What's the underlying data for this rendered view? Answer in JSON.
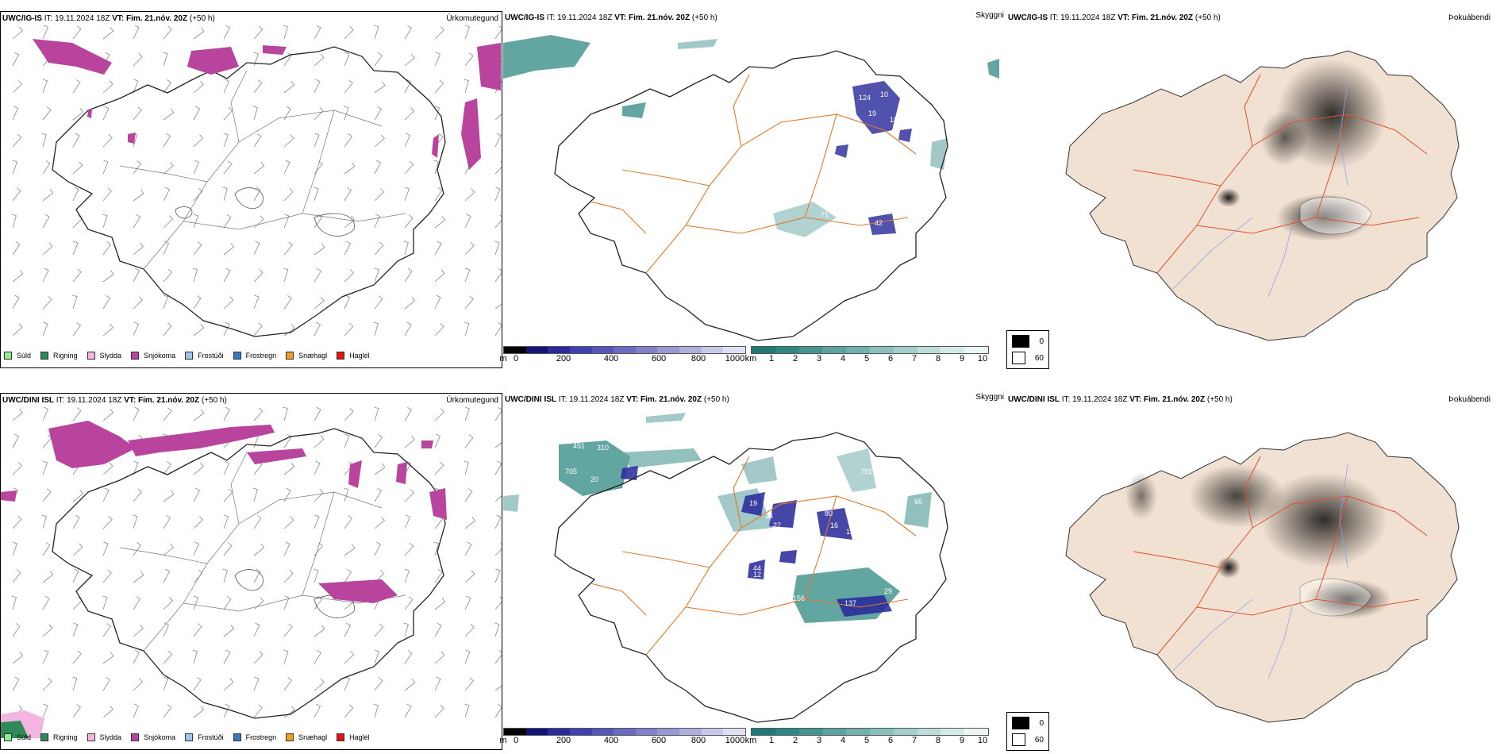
{
  "rows": [
    {
      "model": "UWC/IG-IS",
      "precip": {
        "model": "UWC/IG-IS",
        "it_label": "IT:",
        "it_value": "19.11.2024 18Z",
        "vt_label": "VT:",
        "vt_value": "Fim. 21.nóv. 20Z",
        "lead": "(+50 h)",
        "type": "Úrkomutegund"
      },
      "cloud": {
        "model": "UWC/IG-IS",
        "it_label": "IT:",
        "it_value": "19.11.2024 18Z",
        "vt_label": "VT:",
        "vt_value": "Fim. 21.nóv. 20Z",
        "lead": "(+50 h)",
        "type": "Skyggni",
        "labels": [
          "124",
          "10",
          "19",
          "18",
          "71",
          "17",
          "42"
        ]
      },
      "fog": {
        "model": "UWC/IG-IS",
        "it_label": "IT:",
        "it_value": "19.11.2024 18Z",
        "vt_label": "VT:",
        "vt_value": "Fim. 21.nóv. 20Z",
        "lead": "(+50 h)",
        "type": "Þokuábendi"
      }
    },
    {
      "model": "UWC/DINI ISL",
      "precip": {
        "model": "UWC/DINI ISL",
        "it_label": "IT:",
        "it_value": "19.11.2024 18Z",
        "vt_label": "VT:",
        "vt_value": "Fim. 21.nóv. 20Z",
        "lead": "(+50 h)",
        "type": "Úrkomutegund"
      },
      "cloud": {
        "model": "UWC/DINI ISL",
        "it_label": "IT:",
        "it_value": "19.11.2024 18Z",
        "vt_label": "VT:",
        "vt_value": "Fim. 21.nóv. 20Z",
        "lead": "(+50 h)",
        "type": "Skyggni",
        "labels": [
          "451",
          "310",
          "705",
          "20",
          "791",
          "66",
          "19",
          "24",
          "27",
          "80",
          "16",
          "12",
          "20",
          "15",
          "44",
          "156",
          "137",
          "29",
          "12"
        ]
      },
      "fog": {
        "model": "UWC/DINI ISL",
        "it_label": "IT:",
        "it_value": "19.11.2024 18Z",
        "vt_label": "VT:",
        "vt_value": "Fim. 21.nóv. 20Z",
        "lead": "(+50 h)",
        "type": "Þokuábendi"
      }
    }
  ],
  "precip_legend": [
    {
      "label": "Súld",
      "color": "#90ee90"
    },
    {
      "label": "Rigning",
      "color": "#2e8b57"
    },
    {
      "label": "Slydda",
      "color": "#f4b6e0"
    },
    {
      "label": "Snjókoma",
      "color": "#b8449e"
    },
    {
      "label": "Frostúði",
      "color": "#9ec5f0"
    },
    {
      "label": "Frostregn",
      "color": "#3b78c4"
    },
    {
      "label": "Snæhagl",
      "color": "#f0a020"
    },
    {
      "label": "Haglél",
      "color": "#e81010"
    }
  ],
  "ceiling_bar": {
    "unit": "m",
    "ticks": [
      "0",
      "200",
      "400",
      "600",
      "800",
      "1000"
    ],
    "colors": [
      "#000000",
      "#141478",
      "#2a2a9a",
      "#4040b0",
      "#5555bb",
      "#6a6ac2",
      "#8080cc",
      "#9898d6",
      "#b0b0e0",
      "#c8c8ea",
      "#e0e0f4"
    ]
  },
  "vis_bar": {
    "unit": "km",
    "ticks": [
      "1",
      "2",
      "3",
      "4",
      "5",
      "6",
      "7",
      "8",
      "9",
      "10"
    ],
    "colors": [
      "#1d7a75",
      "#2f8783",
      "#449590",
      "#5aa39e",
      "#72b2ad",
      "#8ac1bc",
      "#a3cfcb",
      "#bcdeda",
      "#d4ebe8",
      "#ecf7f5"
    ]
  },
  "fog_legend": [
    {
      "label": "0",
      "color": "#000000"
    },
    {
      "label": "60",
      "color": "#ffffff"
    }
  ],
  "colors": {
    "snow": "#b8449e",
    "rain": "#2e8b57",
    "land": "#f1e1d2",
    "roads": "#e07a2a",
    "rivers": "#8aa4f0",
    "ceiling": "#26269a",
    "visibility": "#3d8f8a"
  }
}
